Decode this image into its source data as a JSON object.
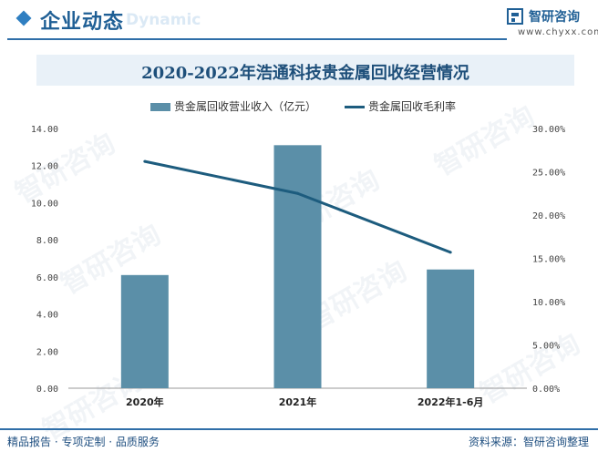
{
  "header": {
    "title": "企业动态",
    "watermark_text": "Dynamic",
    "logo_name": "智研咨询",
    "logo_url": "www.chyxx.com",
    "accent": "#2f6ea8"
  },
  "watermark": "智研咨询",
  "chart_data": {
    "type": "bar",
    "title": "2020-2022年浩通科技贵金属回收经营情况",
    "categories": [
      "2020年",
      "2021年",
      "2022年1-6月"
    ],
    "series": [
      {
        "name": "贵金属回收营业收入（亿元）",
        "kind": "bar",
        "axis": "left",
        "color": "#5b8fa8",
        "values": [
          6.1,
          13.1,
          6.4
        ]
      },
      {
        "name": "贵金属回收毛利率",
        "kind": "line",
        "axis": "right",
        "color": "#1d5c7e",
        "values": [
          26.2,
          22.5,
          15.7
        ]
      }
    ],
    "y_left": {
      "ylim": [
        0,
        14
      ],
      "ticks": [
        "0.00",
        "2.00",
        "4.00",
        "6.00",
        "8.00",
        "10.00",
        "12.00",
        "14.00"
      ]
    },
    "y_right": {
      "ylim": [
        0,
        30
      ],
      "ticks": [
        "0.00%",
        "5.00%",
        "10.00%",
        "15.00%",
        "20.00%",
        "25.00%",
        "30.00%"
      ]
    },
    "legend": "top-center",
    "grid": false
  },
  "footer": {
    "left": "精品报告 · 专项定制 · 品质服务",
    "right": "资料来源：智研咨询整理"
  }
}
